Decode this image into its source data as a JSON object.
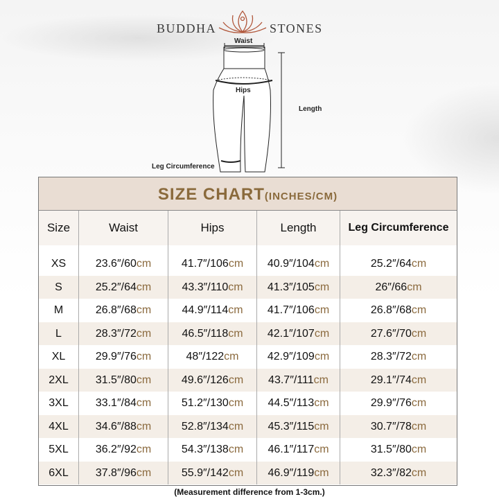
{
  "brand": {
    "left": "BUDDHA",
    "right": "STONES"
  },
  "diagram": {
    "waist": "Waist",
    "hips": "Hips",
    "length": "Length",
    "leg": "Leg Circumference"
  },
  "table": {
    "title": "SIZE CHART",
    "title_units": "(INCHES/CM)",
    "headers": [
      "Size",
      "Waist",
      "Hips",
      "Length",
      "Leg Circumference"
    ],
    "unit": "cm",
    "rows": [
      {
        "size": "XS",
        "waist": [
          "23.6",
          "60"
        ],
        "hips": [
          "41.7",
          "106"
        ],
        "length": [
          "40.9",
          "104"
        ],
        "leg": [
          "25.2",
          "64"
        ]
      },
      {
        "size": "S",
        "waist": [
          "25.2",
          "64"
        ],
        "hips": [
          "43.3",
          "110"
        ],
        "length": [
          "41.3",
          "105"
        ],
        "leg": [
          "26",
          "66"
        ]
      },
      {
        "size": "M",
        "waist": [
          "26.8",
          "68"
        ],
        "hips": [
          "44.9",
          "114"
        ],
        "length": [
          "41.7",
          "106"
        ],
        "leg": [
          "26.8",
          "68"
        ]
      },
      {
        "size": "L",
        "waist": [
          "28.3",
          "72"
        ],
        "hips": [
          "46.5",
          "118"
        ],
        "length": [
          "42.1",
          "107"
        ],
        "leg": [
          "27.6",
          "70"
        ]
      },
      {
        "size": "XL",
        "waist": [
          "29.9",
          "76"
        ],
        "hips": [
          "48",
          "122"
        ],
        "length": [
          "42.9",
          "109"
        ],
        "leg": [
          "28.3",
          "72"
        ]
      },
      {
        "size": "2XL",
        "waist": [
          "31.5",
          "80"
        ],
        "hips": [
          "49.6",
          "126"
        ],
        "length": [
          "43.7",
          "111"
        ],
        "leg": [
          "29.1",
          "74"
        ]
      },
      {
        "size": "3XL",
        "waist": [
          "33.1",
          "84"
        ],
        "hips": [
          "51.2",
          "130"
        ],
        "length": [
          "44.5",
          "113"
        ],
        "leg": [
          "29.9",
          "76"
        ]
      },
      {
        "size": "4XL",
        "waist": [
          "34.6",
          "88"
        ],
        "hips": [
          "52.8",
          "134"
        ],
        "length": [
          "45.3",
          "115"
        ],
        "leg": [
          "30.7",
          "78"
        ]
      },
      {
        "size": "5XL",
        "waist": [
          "36.2",
          "92"
        ],
        "hips": [
          "54.3",
          "138"
        ],
        "length": [
          "46.1",
          "117"
        ],
        "leg": [
          "31.5",
          "80"
        ]
      },
      {
        "size": "6XL",
        "waist": [
          "37.8",
          "96"
        ],
        "hips": [
          "55.9",
          "142"
        ],
        "length": [
          "46.9",
          "119"
        ],
        "leg": [
          "32.3",
          "82"
        ]
      }
    ]
  },
  "footer": "(Measurement difference from 1-3cm.)",
  "colors": {
    "title_bg": "#e9ddd3",
    "accent": "#8a6a3c",
    "row_shade": "#f4eee7"
  }
}
